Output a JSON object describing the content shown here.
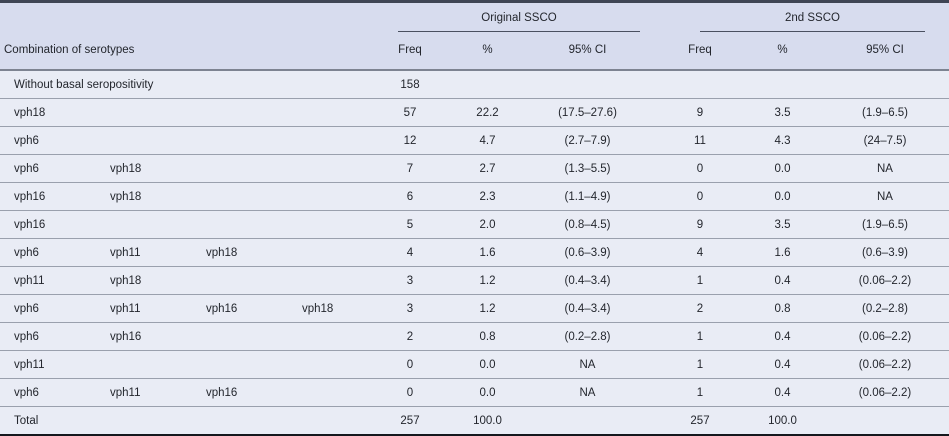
{
  "table": {
    "groups": [
      "Original SSCO",
      "2nd SSCO"
    ],
    "row_header": "Combination of serotypes",
    "sub_headers": [
      "Freq",
      "%",
      "95% CI",
      "Freq",
      "%",
      "95% CI"
    ],
    "rows": [
      {
        "serotypes": [
          "Without basal seropositivity"
        ],
        "orig": {
          "freq": "158",
          "pct": "",
          "ci": ""
        },
        "second": {
          "freq": "",
          "pct": "",
          "ci": ""
        }
      },
      {
        "serotypes": [
          "vph18"
        ],
        "orig": {
          "freq": "57",
          "pct": "22.2",
          "ci": "(17.5–27.6)"
        },
        "second": {
          "freq": "9",
          "pct": "3.5",
          "ci": "(1.9–6.5)"
        }
      },
      {
        "serotypes": [
          "vph6"
        ],
        "orig": {
          "freq": "12",
          "pct": "4.7",
          "ci": "(2.7–7.9)"
        },
        "second": {
          "freq": "11",
          "pct": "4.3",
          "ci": "(24–7.5)"
        }
      },
      {
        "serotypes": [
          "vph6",
          "vph18"
        ],
        "orig": {
          "freq": "7",
          "pct": "2.7",
          "ci": "(1.3–5.5)"
        },
        "second": {
          "freq": "0",
          "pct": "0.0",
          "ci": "NA"
        }
      },
      {
        "serotypes": [
          "vph16",
          "vph18"
        ],
        "orig": {
          "freq": "6",
          "pct": "2.3",
          "ci": "(1.1–4.9)"
        },
        "second": {
          "freq": "0",
          "pct": "0.0",
          "ci": "NA"
        }
      },
      {
        "serotypes": [
          "vph16"
        ],
        "orig": {
          "freq": "5",
          "pct": "2.0",
          "ci": "(0.8–4.5)"
        },
        "second": {
          "freq": "9",
          "pct": "3.5",
          "ci": "(1.9–6.5)"
        }
      },
      {
        "serotypes": [
          "vph6",
          "vph11",
          "vph18"
        ],
        "orig": {
          "freq": "4",
          "pct": "1.6",
          "ci": "(0.6–3.9)"
        },
        "second": {
          "freq": "4",
          "pct": "1.6",
          "ci": "(0.6–3.9)"
        }
      },
      {
        "serotypes": [
          "vph11",
          "vph18"
        ],
        "orig": {
          "freq": "3",
          "pct": "1.2",
          "ci": "(0.4–3.4)"
        },
        "second": {
          "freq": "1",
          "pct": "0.4",
          "ci": "(0.06–2.2)"
        }
      },
      {
        "serotypes": [
          "vph6",
          "vph11",
          "vph16",
          "vph18"
        ],
        "orig": {
          "freq": "3",
          "pct": "1.2",
          "ci": "(0.4–3.4)"
        },
        "second": {
          "freq": "2",
          "pct": "0.8",
          "ci": "(0.2–2.8)"
        }
      },
      {
        "serotypes": [
          "vph6",
          "vph16"
        ],
        "orig": {
          "freq": "2",
          "pct": "0.8",
          "ci": "(0.2–2.8)"
        },
        "second": {
          "freq": "1",
          "pct": "0.4",
          "ci": "(0.06–2.2)"
        }
      },
      {
        "serotypes": [
          "vph11"
        ],
        "orig": {
          "freq": "0",
          "pct": "0.0",
          "ci": "NA"
        },
        "second": {
          "freq": "1",
          "pct": "0.4",
          "ci": "(0.06–2.2)"
        }
      },
      {
        "serotypes": [
          "vph6",
          "vph11",
          "vph16"
        ],
        "orig": {
          "freq": "0",
          "pct": "0.0",
          "ci": "NA"
        },
        "second": {
          "freq": "1",
          "pct": "0.4",
          "ci": "(0.06–2.2)"
        }
      },
      {
        "serotypes": [
          "Total"
        ],
        "orig": {
          "freq": "257",
          "pct": "100.0",
          "ci": ""
        },
        "second": {
          "freq": "257",
          "pct": "100.0",
          "ci": ""
        },
        "is_total": true
      }
    ],
    "colors": {
      "header_bg": "#d7dcee",
      "body_bg": "#e9ecf5",
      "top_border": "#3f4554",
      "bottom_border": "#14171d",
      "header_separator": "#7d8391",
      "row_line": "#9aa0ad",
      "group_underline": "#4a5060",
      "text": "#23262d"
    }
  }
}
